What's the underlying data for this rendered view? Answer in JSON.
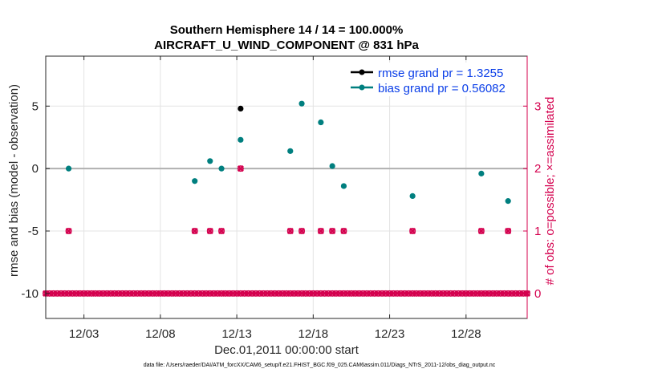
{
  "chart_data": {
    "type": "scatter",
    "title": "Southern Hemisphere 14 / 14 = 100.000%",
    "subtitle": "AIRCRAFT_U_WIND_COMPONENT @ 831 hPa",
    "xlabel": "Dec.01,2011 00:00:00 start",
    "ylabel": "rmse and bias (model - observation)",
    "y2label": "# of obs: o=possible; ×=assimilated",
    "xlim": [
      0.0,
      31.5
    ],
    "ylim": [
      -12.0,
      9.0
    ],
    "y2lim": [
      -0.4,
      3.8
    ],
    "x_ticks": [
      {
        "v": 2.5,
        "label": "12/03"
      },
      {
        "v": 7.5,
        "label": "12/08"
      },
      {
        "v": 12.5,
        "label": "12/13"
      },
      {
        "v": 17.5,
        "label": "12/18"
      },
      {
        "v": 22.5,
        "label": "12/23"
      },
      {
        "v": 27.5,
        "label": "12/28"
      }
    ],
    "y_ticks": [
      {
        "v": 5,
        "label": "5"
      },
      {
        "v": 0,
        "label": "0"
      },
      {
        "v": -5,
        "label": "-5"
      },
      {
        "v": -10,
        "label": "-10"
      }
    ],
    "y2_ticks": [
      {
        "v": 3,
        "label": "3"
      },
      {
        "v": 2,
        "label": "2"
      },
      {
        "v": 1,
        "label": "1"
      },
      {
        "v": 0,
        "label": "0"
      }
    ],
    "zero_line": 0,
    "series": [
      {
        "name": "rmse grand pr = 1.3255",
        "color": "#000000",
        "axis": "left",
        "points": [
          [
            12.75,
            4.8
          ]
        ]
      },
      {
        "name": "bias grand pr = 0.56082",
        "color": "#007f7f",
        "axis": "left",
        "points": [
          [
            1.5,
            0.0
          ],
          [
            9.75,
            -1.0
          ],
          [
            10.75,
            0.6
          ],
          [
            11.5,
            0.0
          ],
          [
            12.75,
            2.3
          ],
          [
            16.0,
            1.4
          ],
          [
            16.75,
            5.2
          ],
          [
            18.0,
            3.7
          ],
          [
            18.75,
            0.2
          ],
          [
            19.5,
            -1.4
          ],
          [
            24.0,
            -2.2
          ],
          [
            28.5,
            -0.4
          ],
          [
            30.25,
            -2.6
          ]
        ]
      },
      {
        "name": "possible",
        "color": "#d4004e",
        "axis": "right",
        "marker": "o",
        "points": [
          [
            1.5,
            1
          ],
          [
            9.75,
            1
          ],
          [
            10.75,
            1
          ],
          [
            11.5,
            1
          ],
          [
            12.75,
            2
          ],
          [
            16.0,
            1
          ],
          [
            16.75,
            1
          ],
          [
            18.0,
            1
          ],
          [
            18.75,
            1
          ],
          [
            19.5,
            1
          ],
          [
            24.0,
            1
          ],
          [
            28.5,
            1
          ],
          [
            30.25,
            1
          ]
        ],
        "zero_x_start": 0.0,
        "zero_x_end": 31.5,
        "zero_x_step": 0.25
      },
      {
        "name": "assimilated",
        "color": "#d4004e",
        "axis": "right",
        "marker": "x",
        "points": [
          [
            1.5,
            1
          ],
          [
            9.75,
            1
          ],
          [
            10.75,
            1
          ],
          [
            11.5,
            1
          ],
          [
            12.75,
            2
          ],
          [
            16.0,
            1
          ],
          [
            16.75,
            1
          ],
          [
            18.0,
            1
          ],
          [
            18.75,
            1
          ],
          [
            19.5,
            1
          ],
          [
            24.0,
            1
          ],
          [
            28.5,
            1
          ],
          [
            30.25,
            1
          ]
        ]
      }
    ],
    "legend": [
      {
        "label": "rmse grand pr = 1.3255",
        "color": "#000000"
      },
      {
        "label": "bias grand pr = 0.56082",
        "color": "#007f7f"
      }
    ],
    "legend_position": "top-right",
    "grid": true
  },
  "footer": "data file: /Users/raeder/DAI/ATM_forcXX/CAM6_setup/f.e21.FHIST_BGC.f09_025.CAM6assim.011/Diags_NTrS_2011-12/obs_diag_output.nc"
}
